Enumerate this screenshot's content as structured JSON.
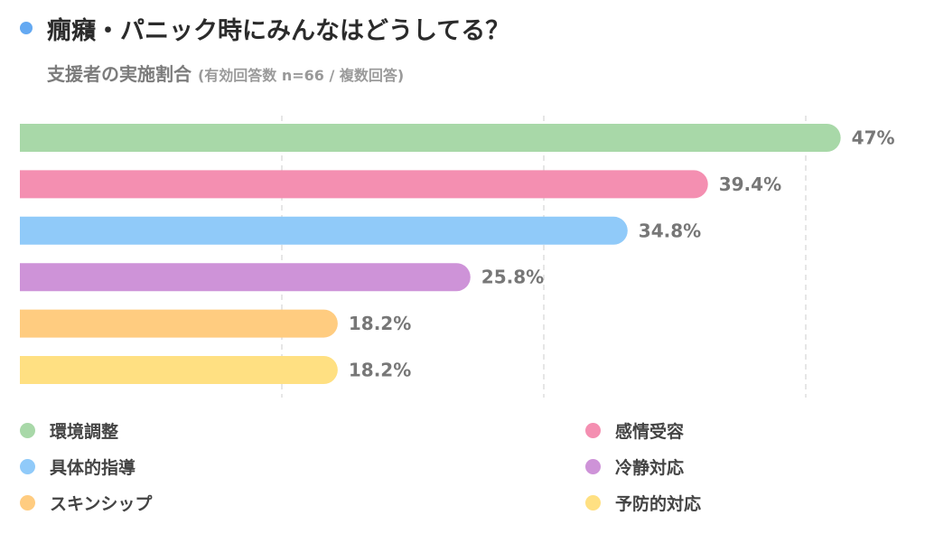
{
  "header": {
    "title": "癇癪・パニック時にみんなはどうしてる？",
    "subtitle": "支援者の実施割合",
    "subtitle_note": "(有効回答数 n=66 / 複数回答)",
    "dot_color": "#64a9f2"
  },
  "chart_data": {
    "type": "bar",
    "orientation": "horizontal",
    "categories": [
      "環境調整",
      "感情受容",
      "具体的指導",
      "冷静対応",
      "スキンシップ",
      "予防的対応"
    ],
    "values": [
      47,
      39.4,
      34.8,
      25.8,
      18.2,
      18.2
    ],
    "value_labels": [
      "47%",
      "39.4%",
      "34.8%",
      "25.8%",
      "18.2%",
      "18.2%"
    ],
    "colors": [
      "#a8d8a8",
      "#f48fb1",
      "#90caf9",
      "#ce93d8",
      "#ffcc80",
      "#ffe082"
    ],
    "xlim": [
      0,
      45
    ],
    "grid": "vertical-dashed",
    "legend_position": "bottom"
  },
  "legend": {
    "items": [
      {
        "label": "環境調整",
        "color": "#a8d8a8"
      },
      {
        "label": "感情受容",
        "color": "#f48fb1"
      },
      {
        "label": "具体的指導",
        "color": "#90caf9"
      },
      {
        "label": "冷静対応",
        "color": "#ce93d8"
      },
      {
        "label": "スキンシップ",
        "color": "#ffcc80"
      },
      {
        "label": "予防的対応",
        "color": "#ffe082"
      }
    ]
  }
}
